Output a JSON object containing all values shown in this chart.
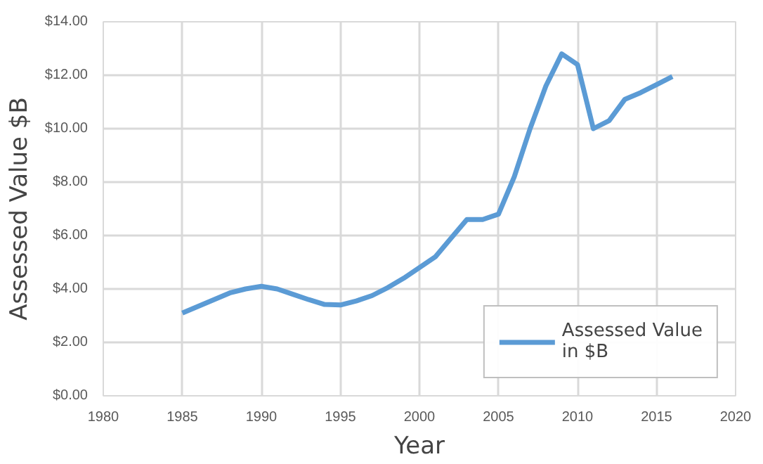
{
  "chart_data": {
    "type": "line",
    "xlabel": "Year",
    "ylabel": "Assessed Value $B",
    "x": [
      1985,
      1986,
      1987,
      1988,
      1989,
      1990,
      1991,
      1992,
      1993,
      1994,
      1995,
      1996,
      1997,
      1998,
      1999,
      2000,
      2001,
      2002,
      2003,
      2004,
      2005,
      2006,
      2007,
      2008,
      2009,
      2010,
      2011,
      2012,
      2013,
      2014,
      2015,
      2016
    ],
    "series": [
      {
        "name": "Assessed Value in $B",
        "color": "#5b9bd5",
        "values": [
          3.1,
          3.35,
          3.6,
          3.85,
          4.0,
          4.1,
          4.0,
          3.8,
          3.6,
          3.42,
          3.4,
          3.55,
          3.75,
          4.05,
          4.4,
          4.8,
          5.2,
          5.9,
          6.6,
          6.6,
          6.8,
          8.2,
          10.0,
          11.6,
          12.8,
          12.4,
          10.0,
          10.3,
          11.1,
          11.35,
          11.65,
          11.95
        ]
      }
    ],
    "xlim": [
      1980,
      2020
    ],
    "xticks": [
      1980,
      1985,
      1990,
      1995,
      2000,
      2005,
      2010,
      2015,
      2020
    ],
    "ylim": [
      0,
      14
    ],
    "yticks": [
      {
        "value": 0,
        "label": "$0.00"
      },
      {
        "value": 2,
        "label": "$2.00"
      },
      {
        "value": 4,
        "label": "$4.00"
      },
      {
        "value": 6,
        "label": "$6.00"
      },
      {
        "value": 8,
        "label": "$8.00"
      },
      {
        "value": 10,
        "label": "$10.00"
      },
      {
        "value": 12,
        "label": "$12.00"
      },
      {
        "value": 14,
        "label": "$14.00"
      }
    ],
    "grid": true,
    "legend": "bottom right",
    "marker": "none",
    "line_style": "solid"
  }
}
